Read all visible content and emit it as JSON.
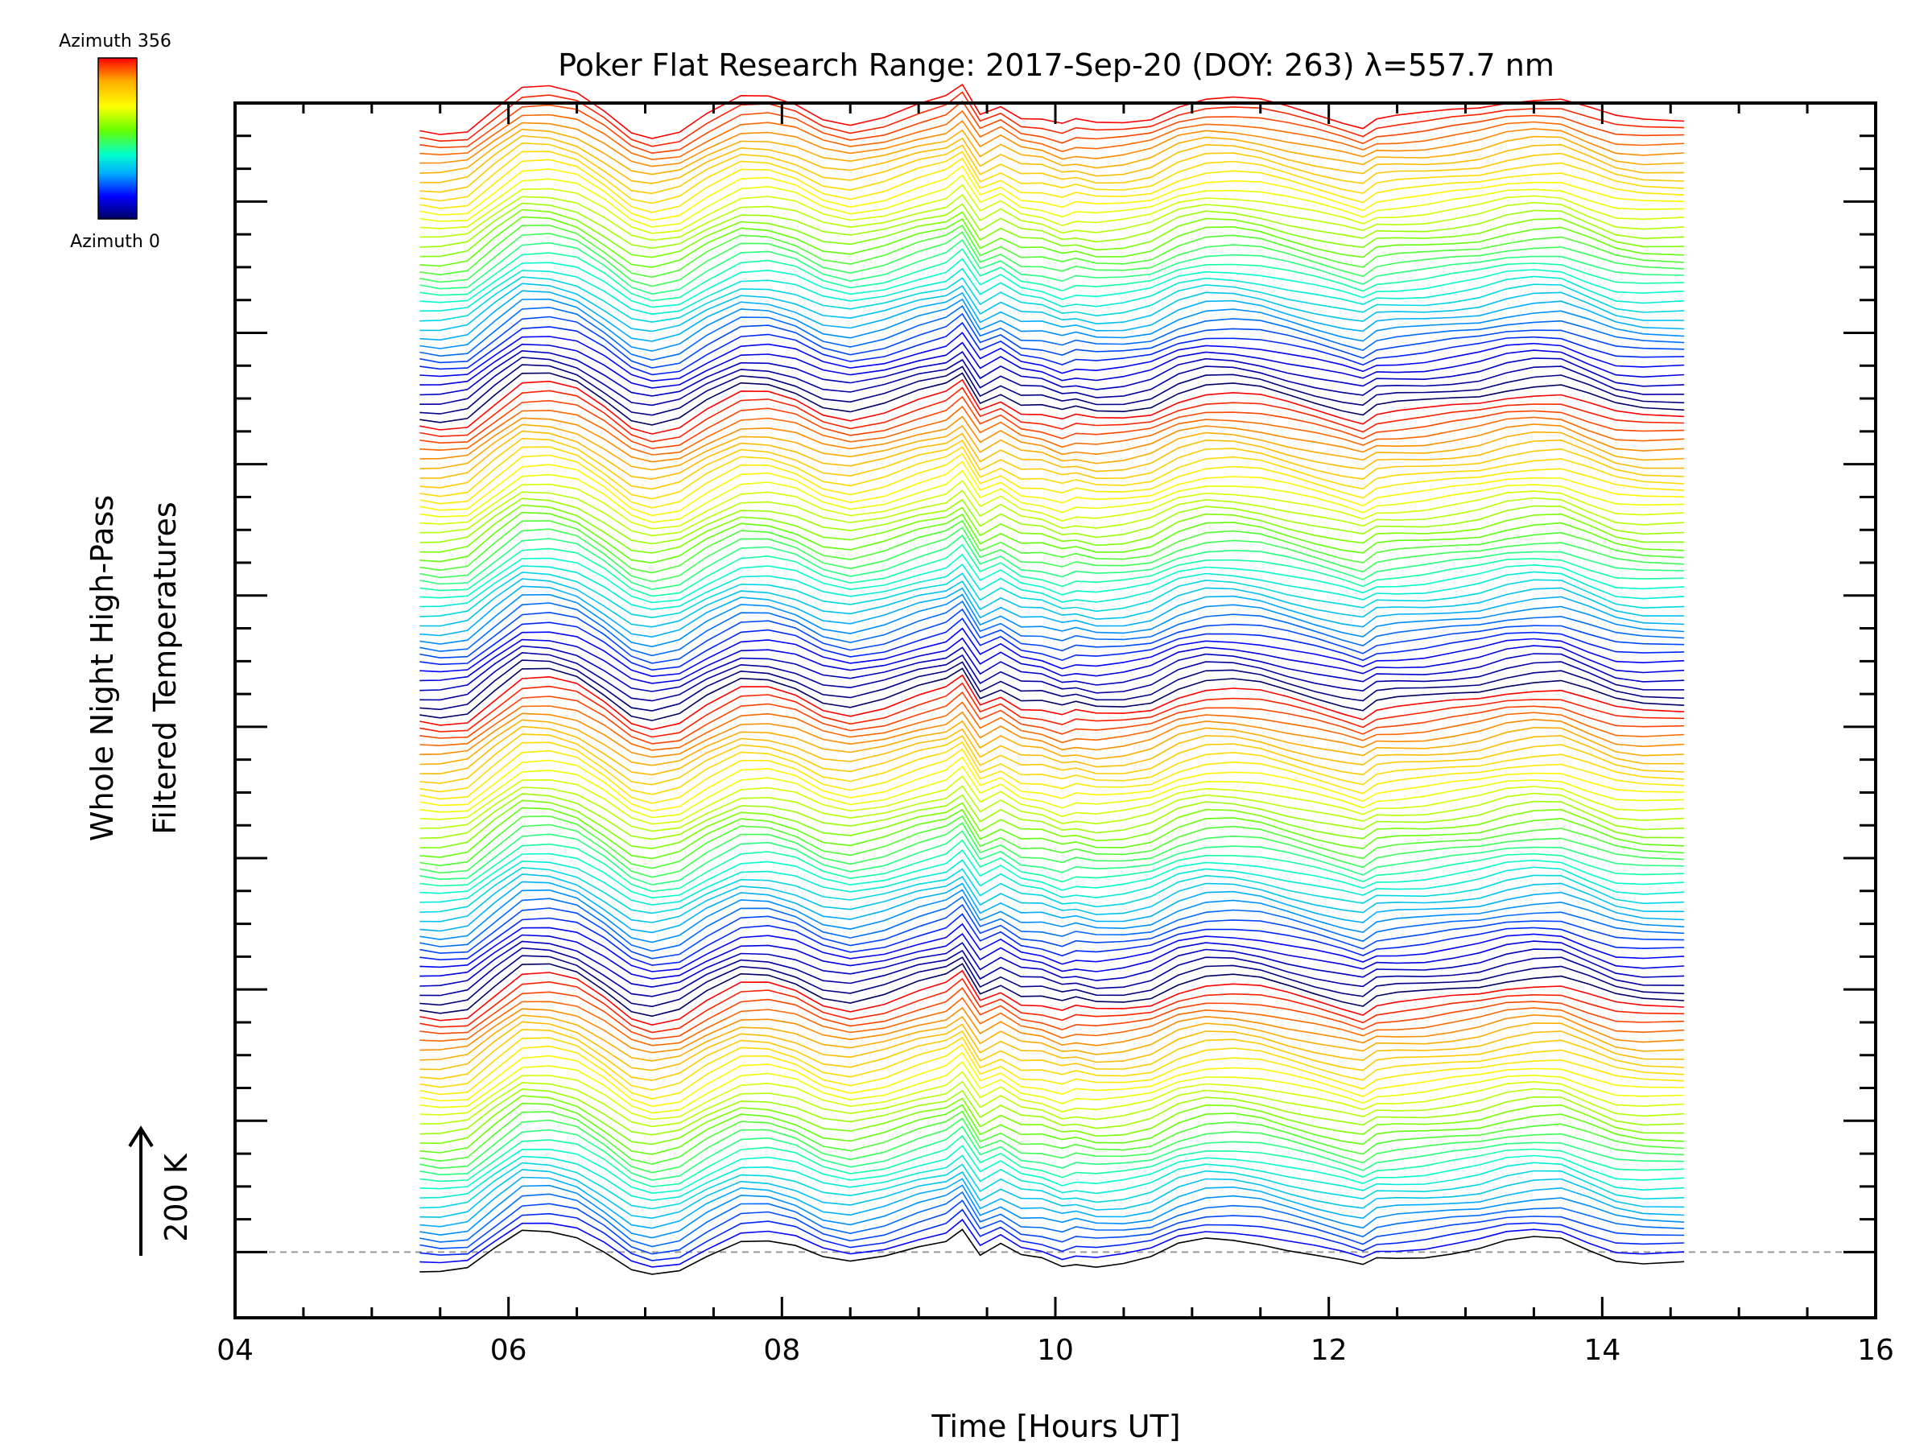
{
  "chart_data": {
    "type": "line",
    "title": "Poker Flat Research Range: 2017-Sep-20 (DOY: 263) λ=557.7 nm",
    "xlabel": "Time [Hours UT]",
    "ylabel_line1": "Whole Night High-Pass",
    "ylabel_line2": "Filtered Temperatures",
    "scale_bar_label": "200 K",
    "xlim": [
      4,
      16
    ],
    "x_ticks": [
      "04",
      "06",
      "08",
      "10",
      "12",
      "14",
      "16"
    ],
    "ylim": [
      -200,
      3500
    ],
    "colorbar": {
      "top_label": "Azimuth 356",
      "bottom_label": "Azimuth 0",
      "colors": [
        "#ff0000",
        "#ffaa00",
        "#ffff00",
        "#66ff00",
        "#00ffcc",
        "#00aaff",
        "#0000ff",
        "#000066"
      ]
    },
    "baseline": 0,
    "series_note": "stacked high-pass filtered temperature traces, one per azimuth bin, offset vertically",
    "x": [
      5.35,
      5.5,
      5.7,
      5.9,
      6.1,
      6.3,
      6.5,
      6.7,
      6.9,
      7.05,
      7.25,
      7.45,
      7.7,
      7.9,
      8.1,
      8.3,
      8.5,
      8.75,
      9.0,
      9.2,
      9.32,
      9.45,
      9.6,
      9.75,
      9.9,
      10.05,
      10.15,
      10.3,
      10.5,
      10.7,
      10.9,
      11.1,
      11.3,
      11.5,
      11.7,
      11.9,
      12.1,
      12.25,
      12.35,
      12.5,
      12.7,
      12.9,
      13.1,
      13.3,
      13.5,
      13.7,
      13.9,
      14.1,
      14.3,
      14.6
    ],
    "profile_K": [
      -60,
      -65,
      -55,
      10,
      70,
      70,
      50,
      0,
      -60,
      -75,
      -60,
      -10,
      40,
      40,
      20,
      -20,
      -35,
      -15,
      20,
      40,
      75,
      -10,
      20,
      -15,
      -20,
      -40,
      -30,
      -40,
      -35,
      -20,
      20,
      40,
      40,
      30,
      10,
      -10,
      -30,
      -45,
      -20,
      -15,
      -10,
      0,
      10,
      30,
      40,
      40,
      10,
      -20,
      -30,
      -30
    ],
    "trace_count": 140,
    "trace_spacing_K": 25
  }
}
